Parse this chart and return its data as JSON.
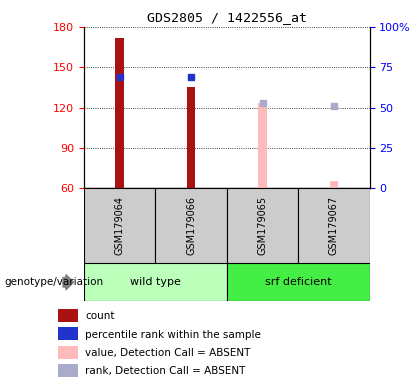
{
  "title": "GDS2805 / 1422556_at",
  "samples": [
    "GSM179064",
    "GSM179066",
    "GSM179065",
    "GSM179067"
  ],
  "count_values": [
    172,
    135,
    null,
    null
  ],
  "count_absent_values": [
    null,
    null,
    123,
    65
  ],
  "rank_values": [
    143,
    143,
    null,
    null
  ],
  "rank_absent_values": [
    null,
    null,
    123,
    121
  ],
  "ylim_left": [
    60,
    180
  ],
  "ylim_right": [
    0,
    100
  ],
  "yticks_left": [
    60,
    90,
    120,
    150,
    180
  ],
  "yticks_right": [
    0,
    25,
    50,
    75,
    100
  ],
  "ytick_labels_right": [
    "0",
    "25",
    "50",
    "75",
    "100%"
  ],
  "groups": [
    {
      "label": "wild type",
      "indices": [
        0,
        1
      ],
      "color": "#bbffbb"
    },
    {
      "label": "srf deficient",
      "indices": [
        2,
        3
      ],
      "color": "#44ee44"
    }
  ],
  "color_count": "#aa1111",
  "color_rank": "#2233cc",
  "color_count_absent": "#ffbbbb",
  "color_rank_absent": "#aaaacc",
  "bar_width": 0.12,
  "marker_size": 5,
  "group_label": "genotype/variation",
  "legend_items": [
    {
      "color": "#aa1111",
      "label": "count"
    },
    {
      "color": "#2233cc",
      "label": "percentile rank within the sample"
    },
    {
      "color": "#ffbbbb",
      "label": "value, Detection Call = ABSENT"
    },
    {
      "color": "#aaaacc",
      "label": "rank, Detection Call = ABSENT"
    }
  ]
}
